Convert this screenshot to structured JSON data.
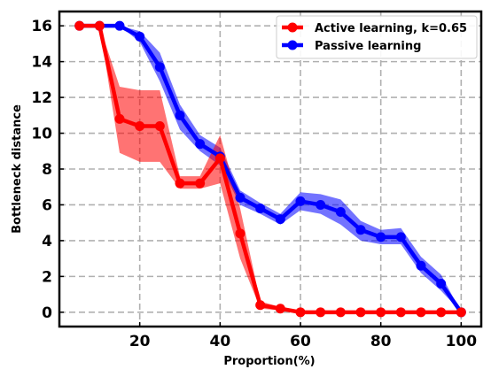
{
  "chart_data": {
    "type": "line",
    "title": "",
    "xlabel": "Proportion(%)",
    "ylabel": "Bottleneck distance",
    "xlim": [
      0,
      105
    ],
    "ylim": [
      -0.8,
      16.8
    ],
    "xticks": [
      20,
      40,
      60,
      80,
      100
    ],
    "yticks": [
      0,
      2,
      4,
      6,
      8,
      10,
      12,
      14,
      16
    ],
    "grid": true,
    "grid_style": "dashed",
    "legend_position": "top-right",
    "series": [
      {
        "name": "Active learning, k=0.65",
        "color": "#ff0000",
        "x": [
          5,
          10,
          15,
          20,
          25,
          30,
          35,
          40,
          45,
          50,
          55,
          60,
          65,
          70,
          75,
          80,
          85,
          90,
          95,
          100
        ],
        "values": [
          16,
          16,
          10.8,
          10.4,
          10.4,
          7.2,
          7.2,
          8.6,
          4.4,
          0.4,
          0.2,
          0,
          0,
          0,
          0,
          0,
          0,
          0,
          0,
          0
        ],
        "lower": [
          16,
          16,
          8.9,
          8.4,
          8.4,
          6.9,
          6.9,
          7.2,
          3.0,
          0.2,
          0.1,
          0,
          0,
          0,
          0,
          0,
          0,
          0,
          0,
          0
        ],
        "upper": [
          16,
          16,
          12.6,
          12.4,
          12.4,
          7.6,
          7.6,
          9.9,
          5.8,
          0.6,
          0.3,
          0,
          0,
          0,
          0,
          0,
          0,
          0,
          0,
          0
        ]
      },
      {
        "name": "Passive learning",
        "color": "#0000ff",
        "x": [
          5,
          10,
          15,
          20,
          25,
          30,
          35,
          40,
          45,
          50,
          55,
          60,
          65,
          70,
          75,
          80,
          85,
          90,
          95,
          100
        ],
        "values": [
          16,
          16,
          16,
          15.4,
          13.7,
          11.0,
          9.4,
          8.7,
          6.4,
          5.8,
          5.2,
          6.2,
          6.0,
          5.6,
          4.6,
          4.2,
          4.2,
          2.6,
          1.6,
          0
        ],
        "lower": [
          16,
          16,
          16,
          15.1,
          12.9,
          10.2,
          9.0,
          8.2,
          6.0,
          5.5,
          4.9,
          5.7,
          5.5,
          4.9,
          4.0,
          3.8,
          3.8,
          2.2,
          1.2,
          0
        ],
        "upper": [
          16,
          16,
          16,
          15.7,
          14.5,
          11.6,
          9.9,
          9.2,
          6.8,
          6.1,
          5.5,
          6.7,
          6.6,
          6.3,
          5.1,
          4.6,
          4.7,
          3.1,
          2.1,
          0
        ]
      }
    ]
  }
}
